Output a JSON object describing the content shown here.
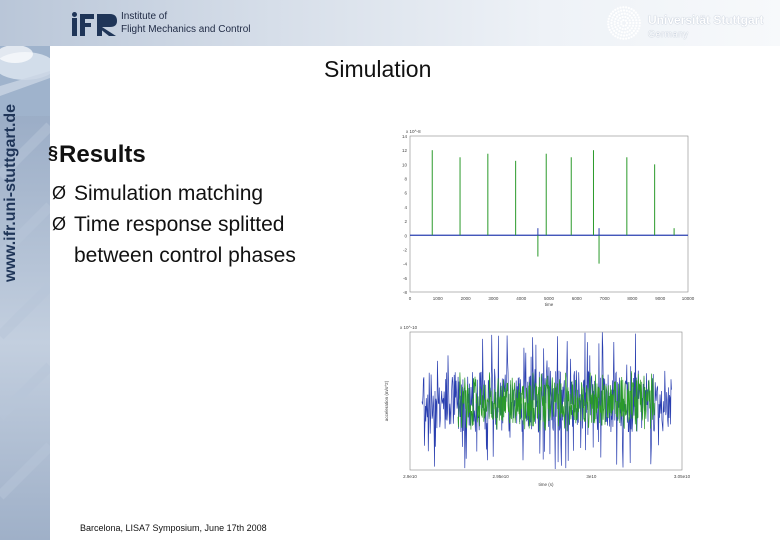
{
  "header": {
    "institute_line1": "Institute of",
    "institute_line2": "Flight Mechanics and Control",
    "university_name": "Universität Stuttgart",
    "university_country": "Germany",
    "logo_icon": "ifr-logo-icon",
    "seal_icon": "university-seal-icon"
  },
  "sidebar": {
    "vertical_url": "www.ifr.uni-stuttgart.de"
  },
  "slide": {
    "title": "Simulation",
    "section_marker": "§",
    "section_heading": "Results",
    "bullets": [
      {
        "marker": "Ø",
        "text": "Simulation matching"
      },
      {
        "marker": "Ø",
        "text": "Time response splitted between control phases"
      }
    ]
  },
  "footer": {
    "text": "Barcelona, LISA7 Symposium, June 17th 2008"
  },
  "colors": {
    "accent": "#1f3558",
    "plot_green": "#2a9a2a",
    "plot_blue": "#2a3fb0"
  },
  "chart_data": [
    {
      "type": "line",
      "title": "",
      "xlabel": "time",
      "ylabel": "",
      "y_exponent": "x 10^-8",
      "xlim": [
        0,
        10000
      ],
      "ylim": [
        -8,
        14
      ],
      "x_ticks": [
        "0",
        "1000",
        "2000",
        "3000",
        "4000",
        "5000",
        "6000",
        "7000",
        "8000",
        "9000",
        "10000"
      ],
      "y_ticks": [
        "14",
        "12",
        "10",
        "8",
        "6",
        "4",
        "2",
        "0",
        "-2",
        "-4",
        "-6",
        "-8"
      ],
      "series": [
        {
          "color": "#2a9a2a",
          "spikes": [
            {
              "x": 800,
              "y": 12
            },
            {
              "x": 1800,
              "y": 11
            },
            {
              "x": 2800,
              "y": 11.5
            },
            {
              "x": 3800,
              "y": 10.5
            },
            {
              "x": 4600,
              "y": -3
            },
            {
              "x": 4900,
              "y": 11.5
            },
            {
              "x": 5800,
              "y": 11
            },
            {
              "x": 6600,
              "y": 12
            },
            {
              "x": 6800,
              "y": -4
            },
            {
              "x": 7800,
              "y": 11
            },
            {
              "x": 8800,
              "y": 10
            },
            {
              "x": 9500,
              "y": 1
            }
          ]
        },
        {
          "color": "#2a3fb0",
          "spikes": [
            {
              "x": 4600,
              "y": 1
            },
            {
              "x": 6800,
              "y": 1
            }
          ]
        }
      ]
    },
    {
      "type": "line",
      "title": "",
      "xlabel": "time (s)",
      "ylabel": "acceleration (m/s^2)",
      "y_exponent": "x 10^-10",
      "x_ticks": [
        "2.9e10",
        "",
        "2.95e10",
        "",
        "3e10",
        "",
        "3.05e10"
      ],
      "ylim": [
        -2.5,
        2.5
      ],
      "series": [
        {
          "name": "",
          "color": "#2a3fb0",
          "amplitude": 2.5
        },
        {
          "name": "",
          "color": "#2a9a2a",
          "amplitude": 1.2
        }
      ]
    }
  ]
}
